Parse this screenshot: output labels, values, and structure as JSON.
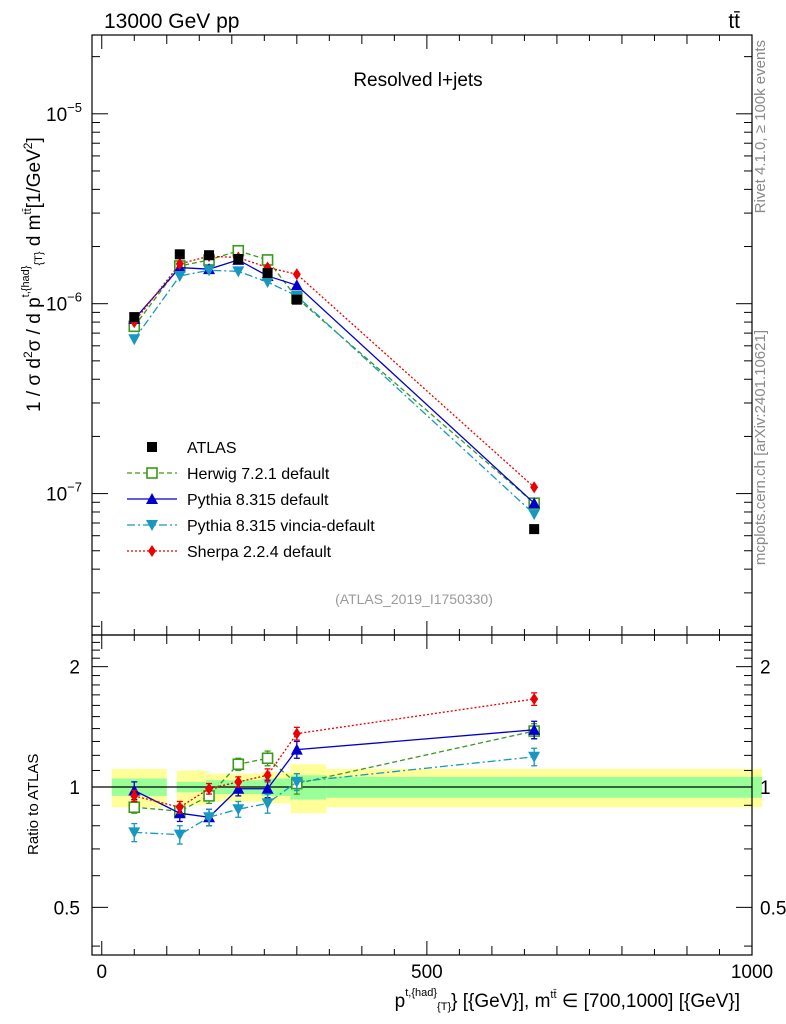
{
  "header": {
    "energy_label": "13000 GeV pp",
    "process_label": "tt̄",
    "plot_title": "Resolved l+jets",
    "analysis_id": "(ATLAS_2019_I1750330)",
    "rivet_label": "Rivet 4.1.0, ≥ 100k events",
    "source_label": "mcplots.cern.ch [arXiv:2401.10621]"
  },
  "axes": {
    "ylabel_main": "1 / σ d²σ / d p^{t,{had}}_{T} d m^{tt̄} [1/GeV²]",
    "ylabel_ratio": "Ratio to ATLAS",
    "xlabel": "p^{t,{had}}_{T} [GeV], m^{tt̄} ∈ [700,1000] [GeV]",
    "xlim": [
      -15,
      1000
    ],
    "ylim_main": [
      1.8e-08,
      2.6e-05
    ],
    "ylim_ratio": [
      0.38,
      2.4
    ],
    "x_ticks": [
      {
        "v": 0,
        "label": "0"
      },
      {
        "v": 500,
        "label": "500"
      },
      {
        "v": 1000,
        "label": "1000"
      }
    ],
    "main_major_ticks": [
      {
        "v": 1e-07,
        "base": "10",
        "exp": "−7"
      },
      {
        "v": 1e-06,
        "base": "10",
        "exp": "−6"
      },
      {
        "v": 1e-05,
        "base": "10",
        "exp": "−5"
      }
    ],
    "ratio_ticks": [
      {
        "v": 0.5,
        "label": "0.5"
      },
      {
        "v": 1,
        "label": "1"
      },
      {
        "v": 2,
        "label": "2"
      }
    ]
  },
  "legend": {
    "entries": [
      {
        "label": "ATLAS",
        "color": "#000000",
        "marker": "square",
        "dash": ""
      },
      {
        "label": "Herwig 7.2.1 default",
        "color": "#3a9a1a",
        "marker": "open-square",
        "dash": "5,3"
      },
      {
        "label": "Pythia 8.315 default",
        "color": "#0000cc",
        "marker": "triangle-up",
        "dash": ""
      },
      {
        "label": "Pythia 8.315 vincia-default",
        "color": "#1898c0",
        "marker": "triangle-down",
        "dash": "8,3,2,3"
      },
      {
        "label": "Sherpa 2.2.4 default",
        "color": "#ee0000",
        "marker": "diamond",
        "dash": "2,2"
      }
    ]
  },
  "chart_data": {
    "type": "scatter",
    "x": [
      50,
      120,
      165,
      210,
      255,
      300,
      665
    ],
    "data": {
      "name": "ATLAS",
      "values": [
        8.5e-07,
        1.82e-06,
        1.8e-06,
        1.72e-06,
        1.45e-06,
        1.05e-06,
        6.5e-08
      ],
      "bins": [
        [
          0,
          100
        ],
        [
          100,
          145
        ],
        [
          145,
          185
        ],
        [
          185,
          230
        ],
        [
          230,
          275
        ],
        [
          275,
          330
        ],
        [
          330,
          1000
        ]
      ],
      "band_stat": [
        0.05,
        0.03,
        0.04,
        0.04,
        0.05,
        0.07,
        0.06
      ],
      "band_total": [
        0.11,
        0.1,
        0.08,
        0.08,
        0.09,
        0.14,
        0.11
      ]
    },
    "series": [
      {
        "name": "Herwig 7.2.1 default",
        "color": "#3a9a1a",
        "values": [
          7.6e-07,
          1.58e-06,
          1.7e-06,
          1.9e-06,
          1.7e-06,
          1.07e-06,
          8.9e-08
        ],
        "ratio": [
          0.89,
          0.87,
          0.95,
          1.14,
          1.18,
          1.02,
          1.38
        ],
        "ratio_err": [
          0.03,
          0.03,
          0.04,
          0.04,
          0.05,
          0.06,
          0.06
        ]
      },
      {
        "name": "Pythia 8.315 default",
        "color": "#0000cc",
        "values": [
          8.3e-07,
          1.55e-06,
          1.52e-06,
          1.7e-06,
          1.4e-06,
          1.25e-06,
          8.9e-08
        ],
        "ratio": [
          0.98,
          0.86,
          0.84,
          0.99,
          0.99,
          1.24,
          1.39
        ],
        "ratio_err": [
          0.05,
          0.04,
          0.04,
          0.04,
          0.05,
          0.06,
          0.07
        ]
      },
      {
        "name": "Pythia 8.315 vincia-default",
        "color": "#1898c0",
        "values": [
          6.5e-07,
          1.4e-06,
          1.5e-06,
          1.48e-06,
          1.3e-06,
          1.1e-06,
          7.8e-08
        ],
        "ratio": [
          0.77,
          0.76,
          0.84,
          0.88,
          0.91,
          1.03,
          1.19
        ],
        "ratio_err": [
          0.04,
          0.04,
          0.04,
          0.04,
          0.05,
          0.05,
          0.06
        ]
      },
      {
        "name": "Sherpa 2.2.4 default",
        "color": "#ee0000",
        "values": [
          8e-07,
          1.62e-06,
          1.78e-06,
          1.75e-06,
          1.55e-06,
          1.43e-06,
          1.08e-07
        ],
        "ratio": [
          0.95,
          0.89,
          0.99,
          1.03,
          1.07,
          1.36,
          1.66
        ],
        "ratio_err": [
          0.03,
          0.03,
          0.03,
          0.03,
          0.04,
          0.05,
          0.06
        ]
      }
    ]
  }
}
